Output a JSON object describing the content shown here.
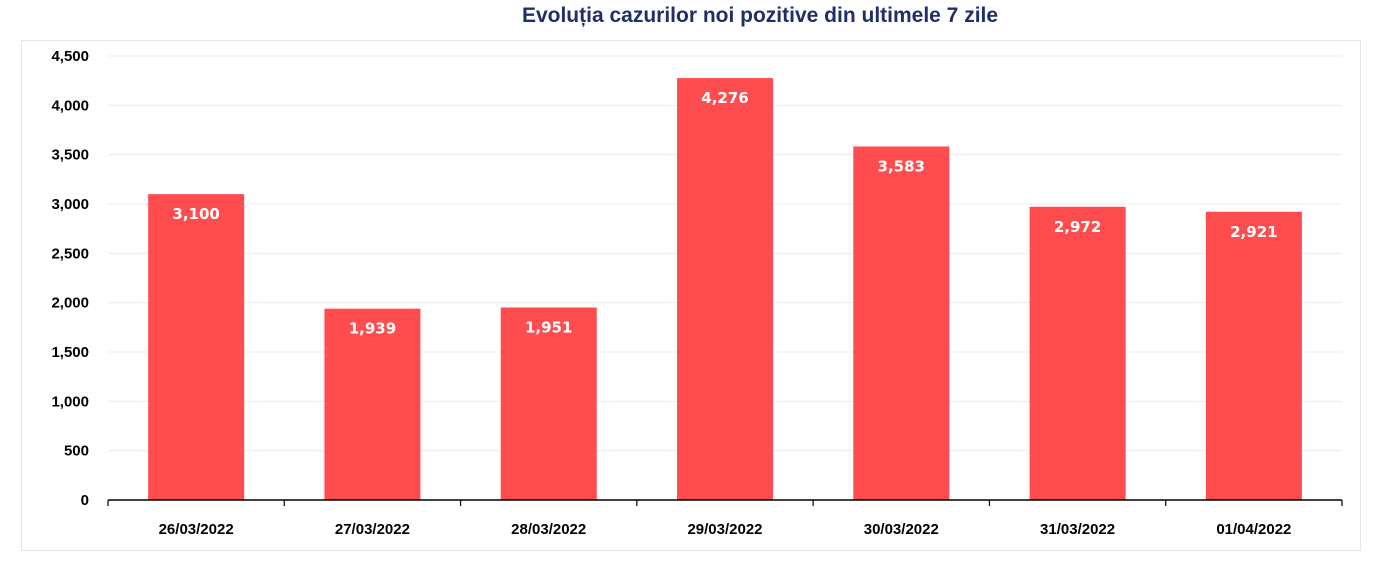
{
  "chart_data": {
    "type": "bar",
    "title": "Evoluția cazurilor noi pozitive din ultimele 7 zile",
    "categories": [
      "26/03/2022",
      "27/03/2022",
      "28/03/2022",
      "29/03/2022",
      "30/03/2022",
      "31/03/2022",
      "01/04/2022"
    ],
    "values": [
      3100,
      1939,
      1951,
      4276,
      3583,
      2972,
      2921
    ],
    "data_labels": [
      "3,100",
      "1,939",
      "1,951",
      "4,276",
      "3,583",
      "2,972",
      "2,921"
    ],
    "ylim": [
      0,
      4500
    ],
    "yticks": [
      0,
      500,
      1000,
      1500,
      2000,
      2500,
      3000,
      3500,
      4000,
      4500
    ],
    "ytick_labels": [
      "0",
      "500",
      "1,000",
      "1,500",
      "2,000",
      "2,500",
      "3,000",
      "3,500",
      "4,000",
      "4,500"
    ],
    "xlabel": "",
    "ylabel": "",
    "grid": true,
    "legend": "none",
    "bar_color": "#ff4d4f",
    "title_color": "#1f2f6b"
  }
}
